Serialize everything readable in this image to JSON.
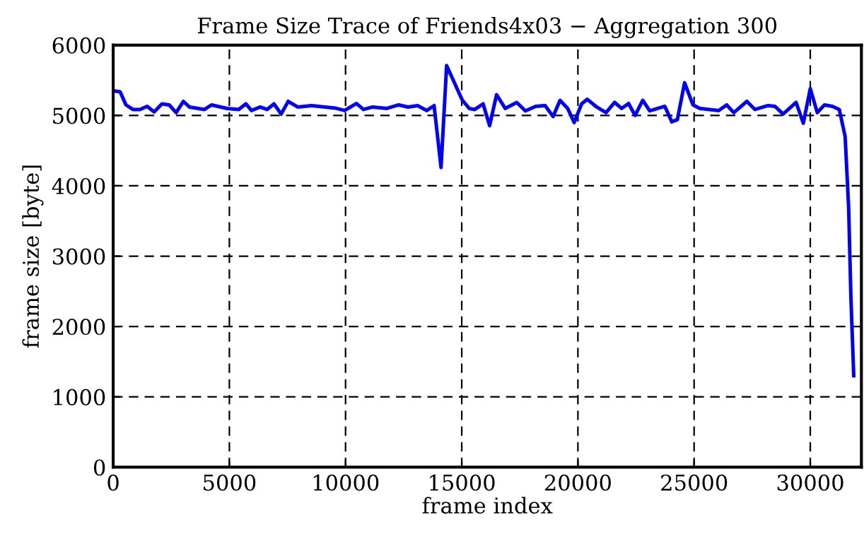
{
  "chart_data": {
    "type": "line",
    "title": "Frame Size Trace of Friends4x03 − Aggregation 300",
    "xlabel": "frame index",
    "ylabel": "frame size [byte]",
    "xlim": [
      0,
      32200
    ],
    "ylim": [
      0,
      6000
    ],
    "xticks": [
      0,
      5000,
      10000,
      15000,
      20000,
      25000,
      30000
    ],
    "yticks": [
      0,
      1000,
      2000,
      3000,
      4000,
      5000,
      6000
    ],
    "grid": true,
    "line_style": "solid",
    "marker": "none",
    "series": [
      {
        "color": "#0000ff",
        "x": [
          0,
          300,
          550,
          850,
          1150,
          1460,
          1760,
          2100,
          2410,
          2710,
          3020,
          3280,
          3930,
          4230,
          4900,
          5400,
          5710,
          5950,
          6320,
          6620,
          6920,
          7230,
          7530,
          7940,
          8540,
          9550,
          9960,
          10470,
          10770,
          11170,
          11780,
          12290,
          12690,
          13100,
          13500,
          13810,
          14110,
          14350,
          15020,
          15320,
          15560,
          15920,
          16200,
          16500,
          16870,
          17370,
          17740,
          18180,
          18590,
          18930,
          19230,
          19560,
          19840,
          20160,
          20400,
          20810,
          21210,
          21580,
          21880,
          22180,
          22460,
          22790,
          23090,
          23740,
          24040,
          24280,
          24590,
          24950,
          25250,
          26060,
          26400,
          26710,
          27270,
          27620,
          28180,
          28480,
          28830,
          29390,
          29700,
          30000,
          30300,
          30610,
          30950,
          31250,
          31500,
          31650,
          31750,
          31870
        ],
        "values": [
          5350,
          5335,
          5150,
          5085,
          5085,
          5130,
          5050,
          5165,
          5150,
          5040,
          5200,
          5120,
          5085,
          5150,
          5100,
          5085,
          5165,
          5070,
          5120,
          5085,
          5165,
          5020,
          5200,
          5120,
          5140,
          5105,
          5070,
          5170,
          5085,
          5120,
          5100,
          5150,
          5120,
          5140,
          5070,
          5140,
          4260,
          5710,
          5220,
          5100,
          5085,
          5165,
          4855,
          5295,
          5100,
          5185,
          5065,
          5130,
          5140,
          4985,
          5215,
          5100,
          4900,
          5165,
          5230,
          5120,
          5040,
          5185,
          5100,
          5170,
          5000,
          5215,
          5065,
          5130,
          4910,
          4940,
          5465,
          5150,
          5100,
          5070,
          5150,
          5040,
          5200,
          5085,
          5140,
          5130,
          5020,
          5185,
          4890,
          5380,
          5040,
          5150,
          5130,
          5085,
          4700,
          3700,
          2400,
          1300
        ]
      }
    ]
  }
}
